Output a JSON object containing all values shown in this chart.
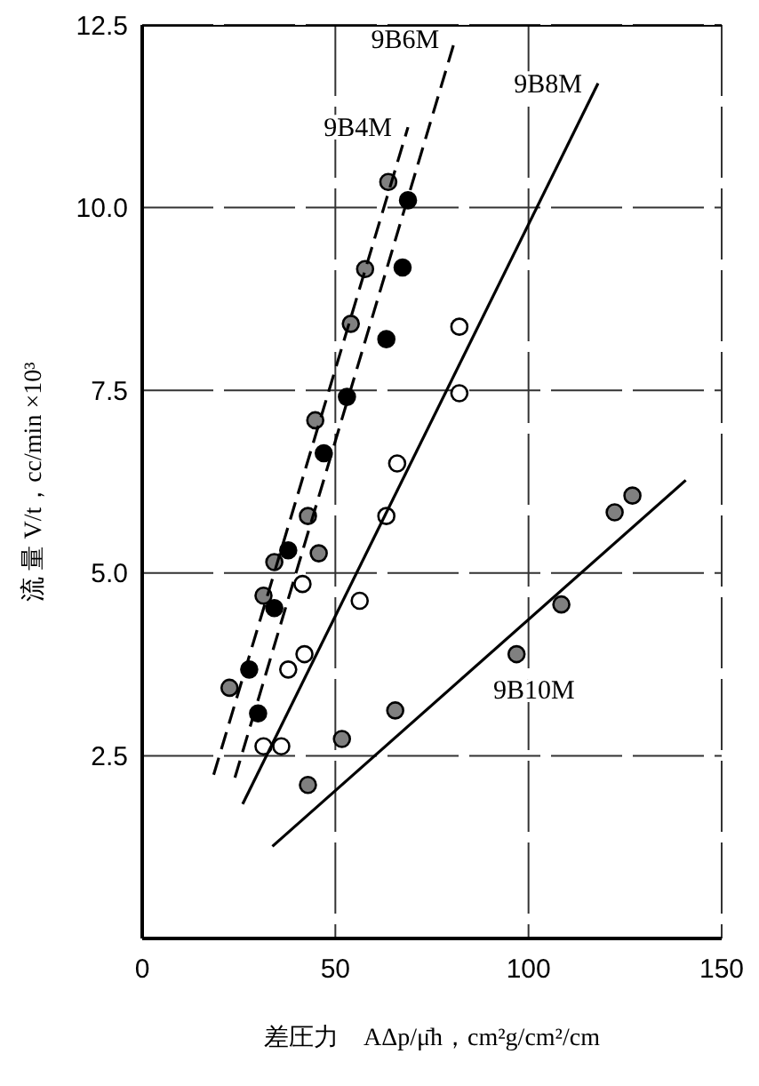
{
  "chart_data": {
    "type": "scatter",
    "xlabel": "差圧力　AΔp/μ̄h，cm²g/cm²/cm",
    "ylabel": "流 量  V/t，cc/min  ×10³",
    "xlim": [
      0,
      150
    ],
    "xticks": [
      0,
      50,
      100,
      150
    ],
    "ylim": [
      0,
      12.5
    ],
    "yticks": [
      {
        "value": 2.5,
        "label": "2.5"
      },
      {
        "value": 5,
        "label": "5.0"
      },
      {
        "value": 7.5,
        "label": "7.5"
      },
      {
        "value": 10,
        "label": "10.0"
      },
      {
        "value": 12.5,
        "label": "12.5"
      }
    ],
    "grid": true,
    "series": [
      {
        "type": "scatter",
        "marker": "circle",
        "color": "#808080",
        "x": [
          63.7,
          57.7,
          54,
          44.8,
          42.9,
          45.7,
          34.2,
          31.4,
          22.6
        ],
        "values": [
          10.35,
          9.16,
          8.41,
          7.09,
          5.78,
          5.27,
          5.15,
          4.69,
          3.43
        ]
      },
      {
        "type": "scatter",
        "marker": "circle",
        "color": "#000000",
        "x": [
          68.8,
          67.4,
          63.2,
          53,
          47,
          37.8,
          34.2,
          27.7,
          30
        ],
        "values": [
          10.1,
          9.18,
          8.2,
          7.41,
          6.64,
          5.31,
          4.52,
          3.68,
          3.08
        ]
      },
      {
        "type": "scatter",
        "marker": "circle",
        "color": "#ffffff",
        "x": [
          82.1,
          82.1,
          66,
          63.2,
          41.5,
          56.3,
          42,
          37.8,
          31.4,
          36
        ],
        "values": [
          8.37,
          7.46,
          6.5,
          5.78,
          4.85,
          4.62,
          3.89,
          3.68,
          2.63,
          2.63
        ]
      },
      {
        "type": "scatter",
        "marker": "circle",
        "color": "#808080",
        "x": [
          42.9,
          51.7,
          65.5,
          96.9,
          108.5,
          122.3,
          126.9
        ],
        "values": [
          2.1,
          2.73,
          3.12,
          3.89,
          4.57,
          5.83,
          6.06
        ]
      },
      {
        "type": "line",
        "name": "9B4M",
        "marker": "none",
        "line_style": "dashed",
        "color": "#000000",
        "x": [
          18.5,
          68.8
        ],
        "values": [
          2.24,
          11.1
        ]
      },
      {
        "type": "line",
        "name": "9B6M",
        "marker": "none",
        "line_style": "dashed",
        "color": "#000000",
        "x": [
          24,
          81
        ],
        "values": [
          2.2,
          12.3
        ]
      },
      {
        "type": "line",
        "name": "9B8M",
        "marker": "none",
        "line_style": "solid",
        "color": "#000000",
        "x": [
          26,
          118
        ],
        "values": [
          1.84,
          11.7
        ]
      },
      {
        "type": "line",
        "name": "9B10M",
        "marker": "none",
        "line_style": "solid",
        "color": "#000000",
        "x": [
          33.7,
          140.7
        ],
        "values": [
          1.26,
          6.27
        ]
      }
    ]
  }
}
